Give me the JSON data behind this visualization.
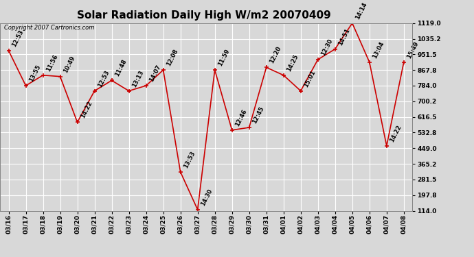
{
  "title": "Solar Radiation Daily High W/m2 20070409",
  "copyright": "Copyright 2007 Cartronics.com",
  "dates": [
    "03/16",
    "03/17",
    "03/18",
    "03/19",
    "03/20",
    "03/21",
    "03/22",
    "03/23",
    "03/24",
    "03/25",
    "03/26",
    "03/27",
    "03/28",
    "03/29",
    "03/30",
    "03/31",
    "04/01",
    "04/02",
    "04/03",
    "04/04",
    "04/05",
    "04/06",
    "04/07",
    "04/08"
  ],
  "values": [
    972,
    784,
    840,
    833,
    588,
    756,
    812,
    756,
    784,
    868,
    322,
    120,
    868,
    546,
    560,
    882,
    840,
    756,
    924,
    980,
    1119,
    910,
    462,
    910
  ],
  "times": [
    "12:53",
    "13:55",
    "11:56",
    "10:49",
    "14:22",
    "12:53",
    "11:48",
    "13:13",
    "14:07",
    "12:08",
    "13:53",
    "14:30",
    "11:59",
    "12:46",
    "12:45",
    "12:20",
    "14:25",
    "15:01",
    "12:30",
    "14:51",
    "14:14",
    "13:04",
    "14:22",
    "15:49"
  ],
  "ymin": 114.0,
  "ymax": 1119.0,
  "yticks": [
    114.0,
    197.8,
    281.5,
    365.2,
    449.0,
    532.8,
    616.5,
    700.2,
    784.0,
    867.8,
    951.5,
    1035.2,
    1119.0
  ],
  "line_color": "#cc0000",
  "marker_color": "#cc0000",
  "bg_color": "#d8d8d8",
  "grid_color": "#ffffff",
  "title_fontsize": 11,
  "label_fontsize": 6.0,
  "tick_fontsize": 6.5,
  "copyright_fontsize": 6
}
